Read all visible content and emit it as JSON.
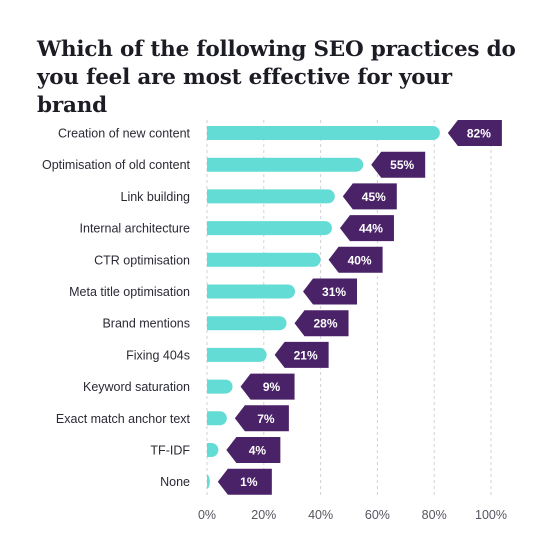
{
  "chart_data": {
    "type": "bar",
    "orientation": "horizontal",
    "title": "Which of the following SEO practices do you feel are most effective for your brand",
    "categories": [
      "Creation of new content",
      "Optimisation of old content",
      "Link building",
      "Internal architecture",
      "CTR optimisation",
      "Meta title optimisation",
      "Brand mentions",
      "Fixing 404s",
      "Keyword saturation",
      "Exact match anchor text",
      "TF-IDF",
      "None"
    ],
    "values": [
      82,
      55,
      45,
      44,
      40,
      31,
      28,
      21,
      9,
      7,
      4,
      1
    ],
    "value_labels": [
      "82%",
      "55%",
      "45%",
      "44%",
      "40%",
      "31%",
      "28%",
      "21%",
      "9%",
      "7%",
      "4%",
      "1%"
    ],
    "xlim": [
      0,
      100
    ],
    "xticks": [
      "0%",
      "20%",
      "40%",
      "60%",
      "80%",
      "100%"
    ],
    "xlabel": "",
    "ylabel": "",
    "grid": "vertical dashed",
    "legend": "none",
    "colors": {
      "bar": "#62dcd4",
      "label": "#4a2268",
      "grid": "#d2d2d8"
    }
  }
}
